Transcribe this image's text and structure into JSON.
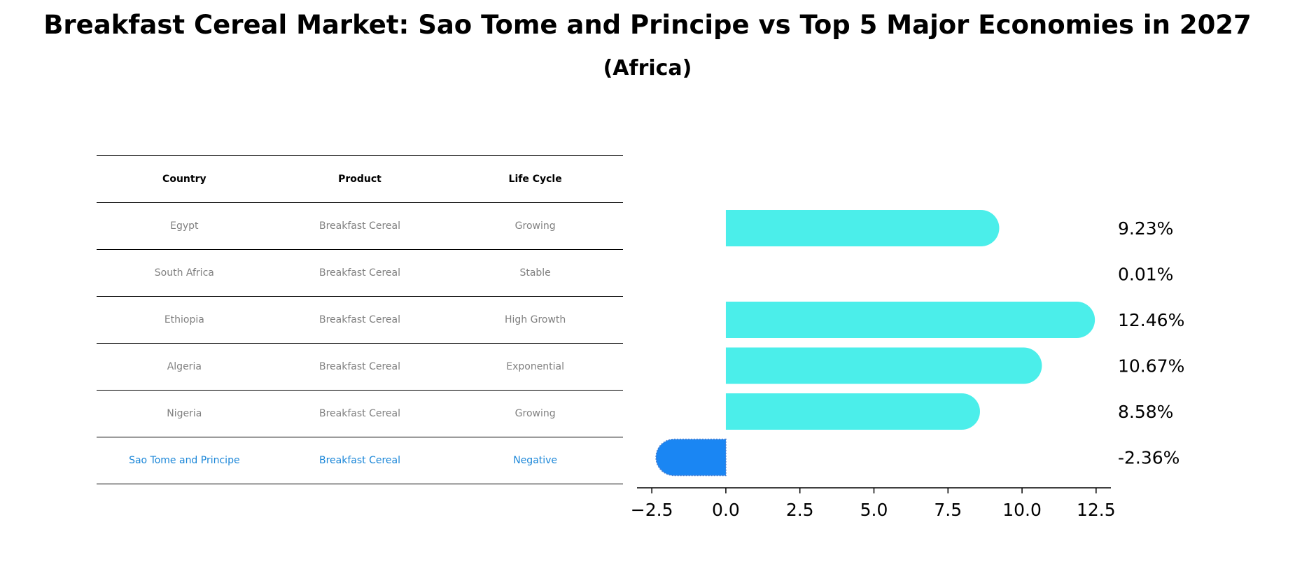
{
  "title": "Breakfast Cereal Market: Sao Tome and Principe vs Top 5 Major Economies in 2027",
  "subtitle": "(Africa)",
  "table": {
    "headers": [
      "Country",
      "Product",
      "Life Cycle"
    ],
    "rows": [
      [
        "Egypt",
        "Breakfast Cereal",
        "Growing"
      ],
      [
        "South Africa",
        "Breakfast Cereal",
        "Stable"
      ],
      [
        "Ethiopia",
        "Breakfast Cereal",
        "High Growth"
      ],
      [
        "Algeria",
        "Breakfast Cereal",
        "Exponential"
      ],
      [
        "Nigeria",
        "Breakfast Cereal",
        "Growing"
      ],
      [
        "Sao Tome and Principe",
        "Breakfast Cereal",
        "Negative"
      ]
    ],
    "highlight_row": 5
  },
  "chart_data": {
    "type": "bar",
    "orientation": "horizontal",
    "categories": [
      "Egypt",
      "South Africa",
      "Ethiopia",
      "Algeria",
      "Nigeria",
      "Sao Tome and Principe"
    ],
    "values": [
      9.23,
      0.01,
      12.46,
      10.67,
      8.58,
      -2.36
    ],
    "value_labels": [
      "9.23%",
      "0.01%",
      "12.46%",
      "10.67%",
      "8.58%",
      "-2.36%"
    ],
    "xlim": [
      -3.0,
      13.0
    ],
    "xticks": [
      -2.5,
      0.0,
      2.5,
      5.0,
      7.5,
      10.0,
      12.5
    ],
    "xtick_labels": [
      "−2.5",
      "0.0",
      "2.5",
      "5.0",
      "7.5",
      "10.0",
      "12.5"
    ],
    "colors": {
      "positive": "#4beeea",
      "negative": "#1a86f3"
    },
    "grid": false
  }
}
